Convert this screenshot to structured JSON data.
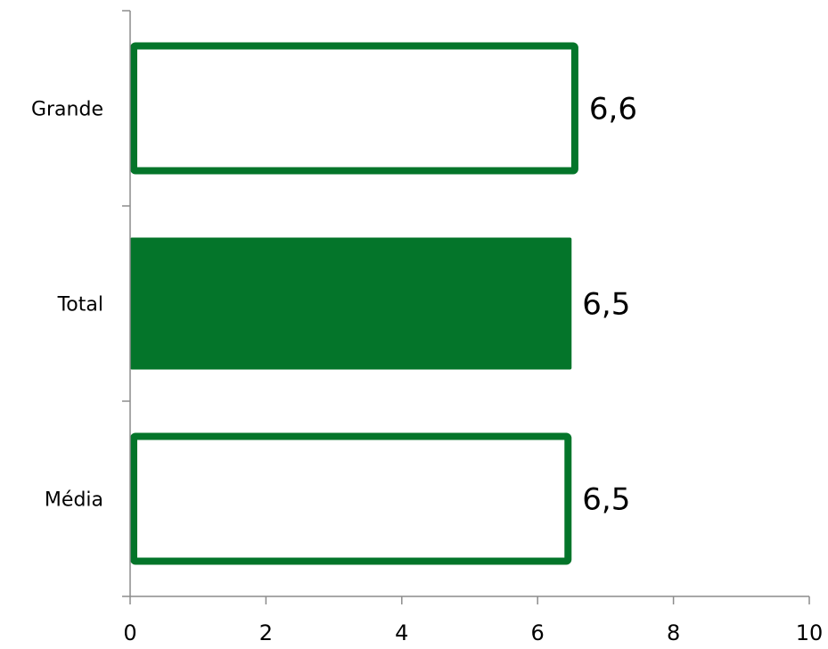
{
  "chart_data": {
    "type": "bar",
    "orientation": "horizontal",
    "categories": [
      "Grande",
      "Total",
      "Média"
    ],
    "values": [
      6.6,
      6.5,
      6.5
    ],
    "data_labels": [
      "6,6",
      "6,5",
      "6,5"
    ],
    "bar_styles": [
      "outline",
      "filled",
      "outline"
    ],
    "x_ticks": [
      0,
      2,
      4,
      6,
      8,
      10
    ],
    "x_tick_labels": [
      "0",
      "2",
      "4",
      "6",
      "8",
      "10"
    ],
    "xlim": [
      0,
      10
    ],
    "title": "",
    "xlabel": "",
    "ylabel": "",
    "grid": false,
    "colors": {
      "bar": "#04752a",
      "axis": "#8c8c8c",
      "text": "#000000"
    }
  }
}
